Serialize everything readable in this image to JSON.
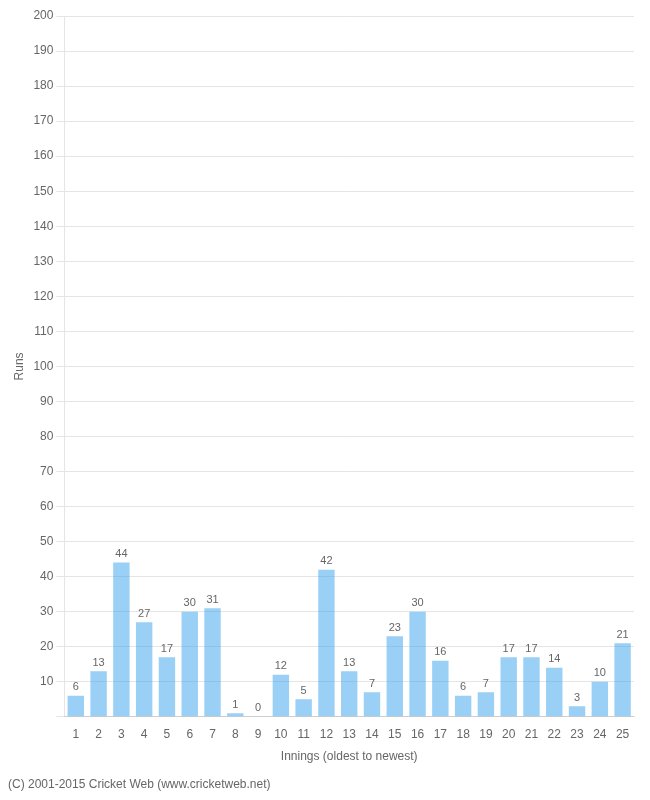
{
  "chart_data": {
    "type": "bar",
    "xlabel": "Innings (oldest to newest)",
    "ylabel": "Runs",
    "categories": [
      1,
      2,
      3,
      4,
      5,
      6,
      7,
      8,
      9,
      10,
      11,
      12,
      13,
      14,
      15,
      16,
      17,
      18,
      19,
      20,
      21,
      22,
      23,
      24,
      25
    ],
    "values": [
      6,
      13,
      44,
      27,
      17,
      30,
      31,
      1,
      0,
      12,
      5,
      42,
      13,
      7,
      23,
      30,
      16,
      6,
      7,
      17,
      17,
      14,
      3,
      10,
      21
    ],
    "ylim": [
      0,
      200
    ],
    "yticks": [
      {
        "value": 0,
        "label": null
      },
      10,
      20,
      30,
      40,
      50,
      60,
      70,
      80,
      90,
      100,
      110,
      120,
      130,
      140,
      150,
      160,
      170,
      180,
      190,
      200
    ],
    "grid": true,
    "data_labels": true,
    "annotations": [
      "(C) 2001-2015 Cricket Web (www.cricketweb.net)"
    ]
  }
}
